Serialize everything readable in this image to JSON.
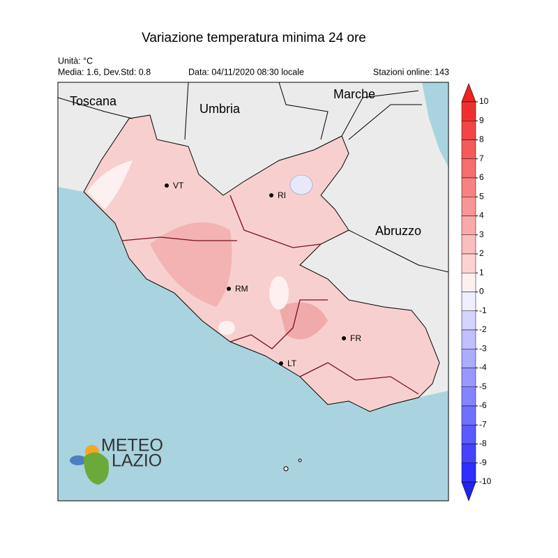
{
  "title": "Variazione temperatura minima 24 ore",
  "info": {
    "unit": "Unità: °C",
    "stats": "Media: 1.6, Dev.Std: 0.8",
    "date": "Data: 04/11/2020 08:30 locale",
    "stations": "Stazioni online: 143"
  },
  "regions": [
    "Toscana",
    "Umbria",
    "Marche",
    "Abruzzo"
  ],
  "cities": [
    "VT",
    "RI",
    "RM",
    "FR",
    "LT"
  ],
  "colorbar": {
    "ticks": [
      10,
      9,
      8,
      7,
      6,
      5,
      4,
      3,
      2,
      1,
      0,
      -1,
      -2,
      -3,
      -4,
      -5,
      -6,
      -7,
      -8,
      -9,
      -10
    ],
    "colors": [
      "#f03030",
      "#f24545",
      "#f45a5a",
      "#f56e6e",
      "#f78282",
      "#f89696",
      "#faaaaa",
      "#fbbebe",
      "#fdd2d2",
      "#fff0f0",
      "#eeeeff",
      "#d4d4ff",
      "#c0c0ff",
      "#acacff",
      "#9898ff",
      "#8484ff",
      "#7070ff",
      "#5a5aff",
      "#4444ff",
      "#2e2eff"
    ],
    "over_color": "#ee2222",
    "under_color": "#2222ee"
  },
  "logo": [
    "METEO",
    "LAZIO"
  ]
}
